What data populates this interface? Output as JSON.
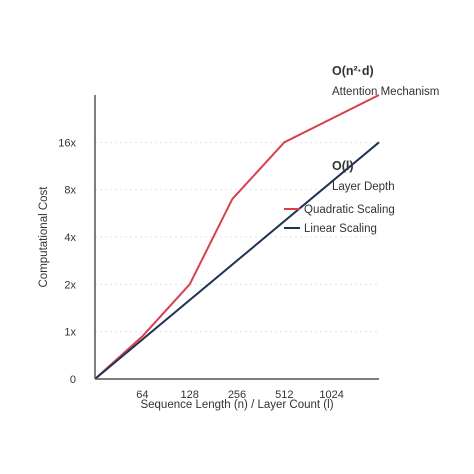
{
  "chart_data": {
    "type": "line",
    "xlabel": "Sequence Length (n) / Layer Count (l)",
    "ylabel": "Computational Cost",
    "categories": [
      "64",
      "128",
      "256",
      "512",
      "1024"
    ],
    "y_ticks": [
      "0",
      "1x",
      "2x",
      "4x",
      "8x",
      "16x"
    ],
    "grid": "horizontal-dotted",
    "legend_position": "right",
    "series": [
      {
        "name": "Quadratic Scaling",
        "color": "#d9404f",
        "points": [
          [
            0,
            0
          ],
          [
            1,
            0.9
          ],
          [
            2,
            2.0
          ],
          [
            2.9,
            3.8
          ],
          [
            4,
            5.0
          ],
          [
            6,
            6.0
          ]
        ]
      },
      {
        "name": "Linear Scaling",
        "color": "#1f3354",
        "points": [
          [
            0,
            0
          ],
          [
            6,
            5.0
          ]
        ]
      }
    ],
    "annotations": [
      {
        "title": "O(n²·d)",
        "subtitle": "Attention Mechanism"
      },
      {
        "title": "O(l)",
        "subtitle": "Layer Depth"
      }
    ]
  }
}
